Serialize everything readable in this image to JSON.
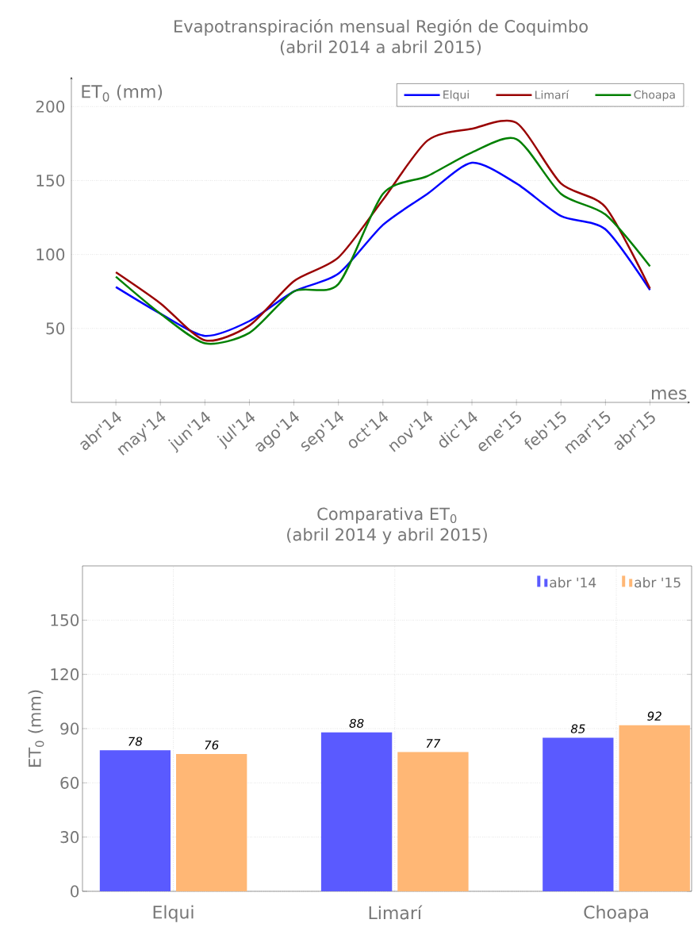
{
  "chart_data": [
    {
      "type": "line",
      "title": "Evapotranspiración mensual Región de Coquimbo",
      "subtitle": "(abril 2014 a abril 2015)",
      "xlabel": "mes",
      "ylabel": "ET$_{0}$ (mm)",
      "categories": [
        "abr'14",
        "may'14",
        "jun'14",
        "jul'14",
        "ago'14",
        "sep'14",
        "oct'14",
        "nov'14",
        "dic'14",
        "ene'15",
        "feb'15",
        "mar'15",
        "abr'15"
      ],
      "series": [
        {
          "name": "Elqui",
          "color": "#0000ff",
          "values": [
            78,
            60,
            45,
            55,
            75,
            87,
            120,
            141,
            162,
            148,
            126,
            117,
            76
          ]
        },
        {
          "name": "Limarí",
          "color": "#990000",
          "values": [
            88,
            67,
            42,
            52,
            82,
            98,
            137,
            177,
            185,
            189,
            148,
            132,
            77
          ]
        },
        {
          "name": "Choapa",
          "color": "#008000",
          "values": [
            85,
            60,
            40,
            47,
            75,
            80,
            141,
            153,
            169,
            178,
            141,
            127,
            92
          ]
        }
      ],
      "ylim": [
        0,
        220
      ],
      "yticks": [
        50,
        100,
        150,
        200
      ],
      "grid": "y",
      "legend": "top right"
    },
    {
      "type": "bar",
      "title": "Comparativa ET$_{0}$",
      "subtitle": "(abril 2014 y abril 2015)",
      "ylabel": "ET$_{0}$ (mm)",
      "categories": [
        "Elqui",
        "Limarí",
        "Choapa"
      ],
      "series": [
        {
          "name": "abr '14",
          "color": "#5a5aff",
          "values": [
            78,
            88,
            85
          ]
        },
        {
          "name": "abr '15",
          "color": "#ffb775",
          "values": [
            76,
            77,
            92
          ]
        }
      ],
      "ylim": [
        0,
        180
      ],
      "yticks": [
        0,
        30,
        60,
        90,
        120,
        150
      ],
      "grid": true,
      "legend": "top right",
      "data_labels": true
    }
  ]
}
